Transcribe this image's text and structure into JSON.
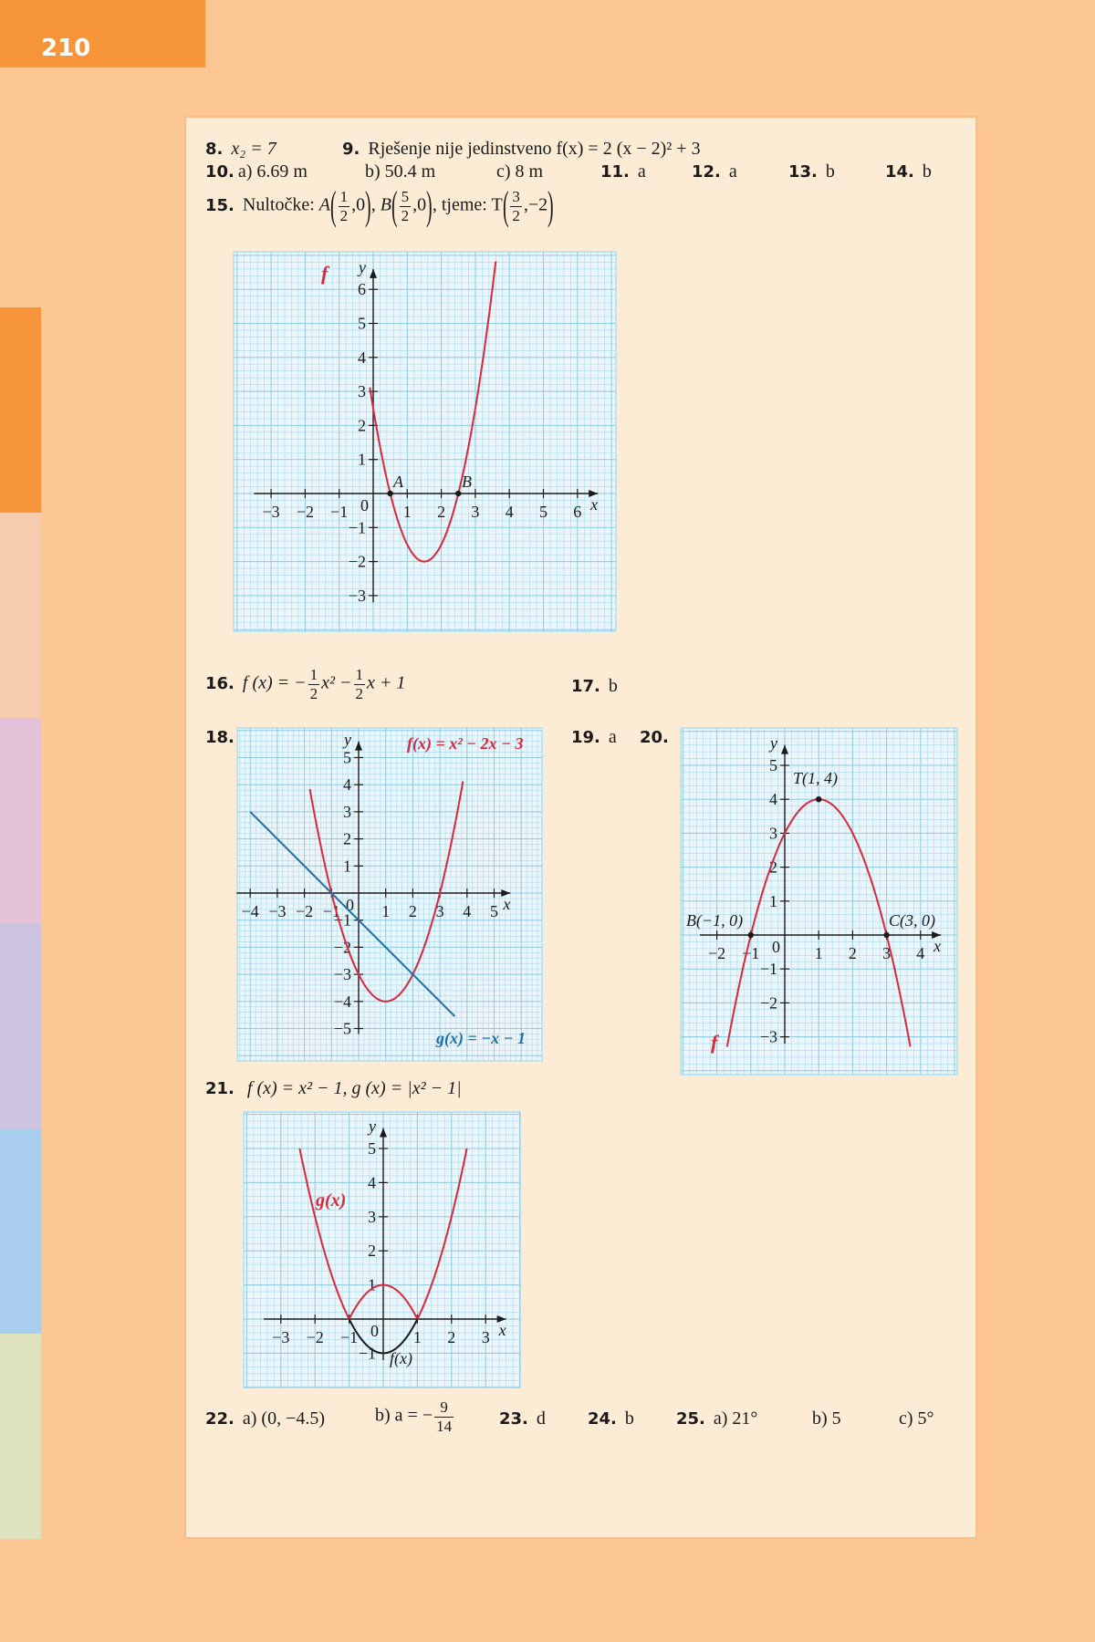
{
  "page_number": "210",
  "colors": {
    "curve_red": "#d8283a",
    "line_blue": "#1e6fae",
    "grid": "#a9d8ec",
    "grid_bg": "#eaf6fb",
    "tab": "#f6953a",
    "bg": "#fdc793",
    "panel": "#fdecd5"
  },
  "side_tabs": [
    "#f6953a",
    "#f5ccad",
    "#e6c2d9",
    "#cdc4e0",
    "#a9cdec",
    "#dfe3bd"
  ],
  "answers": {
    "a8": {
      "num": "8.",
      "text": "x₂ = 7"
    },
    "a9": {
      "num": "9.",
      "text": "Rješenje nije jedinstveno f(x) = 2 (x − 2)² + 3"
    },
    "a10": {
      "num": "10.",
      "a": "a) 6.69 m",
      "b": "b) 50.4 m",
      "c": "c) 8 m"
    },
    "a11": {
      "num": "11.",
      "text": "a"
    },
    "a12": {
      "num": "12.",
      "text": "a"
    },
    "a13": {
      "num": "13.",
      "text": "b"
    },
    "a14": {
      "num": "14.",
      "text": "b"
    },
    "a15": {
      "num": "15.",
      "label": "Nultočke:",
      "A": "A",
      "B": "B",
      "vertex_label": "tjeme: T",
      "zero": ",0",
      "comma": ",",
      "vertex_y": ",−2",
      "one": "1",
      "three": "3",
      "five": "5",
      "two": "2"
    },
    "a16": {
      "num": "16.",
      "lhs": "f (x) = −",
      "one": "1",
      "two": "2",
      "mid": "x² −",
      "tail": "x + 1"
    },
    "a17": {
      "num": "17.",
      "text": "b"
    },
    "a18": {
      "num": "18."
    },
    "a19": {
      "num": "19.",
      "text": "a"
    },
    "a20": {
      "num": "20."
    },
    "a21": {
      "num": "21.",
      "text": "f (x) = x² − 1,  g (x) = |x² − 1|"
    },
    "a22": {
      "num": "22.",
      "a": "a) (0, −4.5)",
      "b": "b) a = −",
      "n": "9",
      "d": "14"
    },
    "a23": {
      "num": "23.",
      "text": "d"
    },
    "a24": {
      "num": "24.",
      "text": "b"
    },
    "a25": {
      "num": "25.",
      "a": "a) 21°",
      "b": "b) 5",
      "c": "c) 5°"
    }
  },
  "chart_data": [
    {
      "id": "fig15",
      "type": "line",
      "xlabel": "x",
      "ylabel": "y",
      "xlim": [
        -3,
        6
      ],
      "ylim": [
        -3,
        6
      ],
      "x_ticks": [
        "−3",
        "−2",
        "−1",
        "1",
        "2",
        "3",
        "4",
        "5",
        "6"
      ],
      "y_ticks": [
        "−3",
        "−2",
        "−1",
        "1",
        "2",
        "3",
        "4",
        "5",
        "6"
      ],
      "origin_label": "0",
      "series": [
        {
          "name": "f",
          "function": "2(x-1.5)^2-2"
        }
      ],
      "points": [
        {
          "label": "A",
          "x": 0.5,
          "y": 0
        },
        {
          "label": "B",
          "x": 2.5,
          "y": 0
        }
      ]
    },
    {
      "id": "fig18",
      "type": "line",
      "xlabel": "x",
      "ylabel": "y",
      "xlim": [
        -4,
        5
      ],
      "ylim": [
        -5,
        5
      ],
      "x_ticks": [
        "−4",
        "−3",
        "−2",
        "−1",
        "1",
        "2",
        "3",
        "4",
        "5"
      ],
      "y_ticks": [
        "−5",
        "−4",
        "−3",
        "−2",
        "−1",
        "1",
        "2",
        "3",
        "4",
        "5"
      ],
      "origin_label": "0",
      "series": [
        {
          "name": "f(x) = x² − 2x − 3",
          "function": "x^2-2x-3"
        },
        {
          "name": "g(x) = −x − 1",
          "function": "-x-1"
        }
      ]
    },
    {
      "id": "fig20",
      "type": "line",
      "xlabel": "x",
      "ylabel": "y",
      "xlim": [
        -2,
        4
      ],
      "ylim": [
        -3,
        5
      ],
      "x_ticks": [
        "−2",
        "−1",
        "1",
        "2",
        "3",
        "4"
      ],
      "y_ticks": [
        "−3",
        "−2",
        "−1",
        "1",
        "2",
        "3",
        "4",
        "5"
      ],
      "origin_label": "0",
      "series": [
        {
          "name": "f",
          "function": "-(x-1)^2+4"
        }
      ],
      "points": [
        {
          "label": "T(1, 4)",
          "x": 1,
          "y": 4
        },
        {
          "label": "B(−1, 0)",
          "x": -1,
          "y": 0
        },
        {
          "label": "C(3, 0)",
          "x": 3,
          "y": 0
        }
      ]
    },
    {
      "id": "fig21",
      "type": "line",
      "xlabel": "x",
      "ylabel": "y",
      "xlim": [
        -3,
        3
      ],
      "ylim": [
        -1,
        5
      ],
      "x_ticks": [
        "−3",
        "−2",
        "−1",
        "1",
        "2",
        "3"
      ],
      "y_ticks": [
        "−1",
        "1",
        "2",
        "3",
        "4",
        "5"
      ],
      "origin_label": "0",
      "series": [
        {
          "name": "g(x)",
          "function": "|x^2-1|"
        },
        {
          "name": "f(x)",
          "function": "x^2-1"
        }
      ]
    }
  ]
}
